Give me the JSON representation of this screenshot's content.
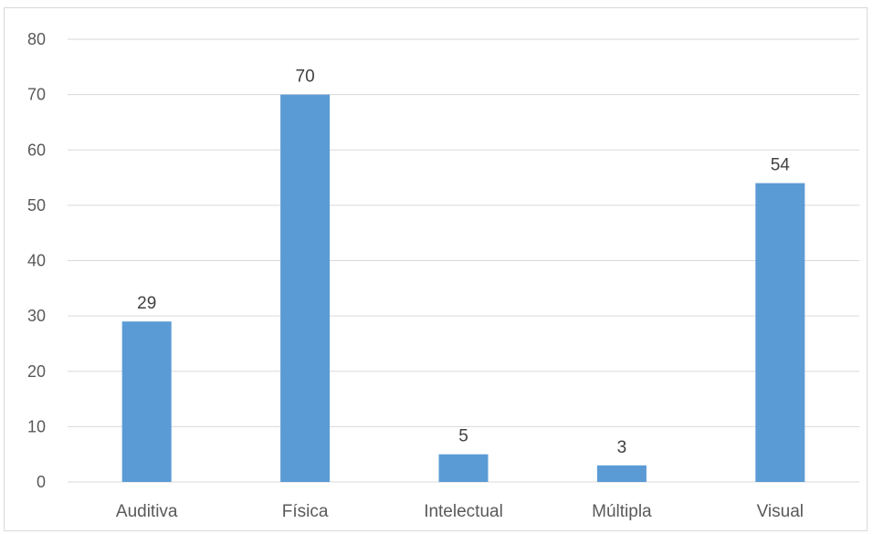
{
  "chart_data": {
    "type": "bar",
    "title": "",
    "xlabel": "",
    "ylabel": "",
    "categories": [
      "Auditiva",
      "Física",
      "Intelectual",
      "Múltipla",
      "Visual"
    ],
    "values": [
      29,
      70,
      5,
      3,
      54
    ],
    "data_labels": [
      "29",
      "70",
      "5",
      "3",
      "54"
    ],
    "ylim": [
      0,
      80
    ],
    "yticks": [
      0,
      10,
      20,
      30,
      40,
      50,
      60,
      70,
      80
    ],
    "ytick_labels": [
      "0",
      "10",
      "20",
      "30",
      "40",
      "50",
      "60",
      "70",
      "80"
    ],
    "grid": true,
    "legend": "none",
    "bar_color": "#5b9bd5",
    "gridline_color": "#d9d9d9"
  }
}
